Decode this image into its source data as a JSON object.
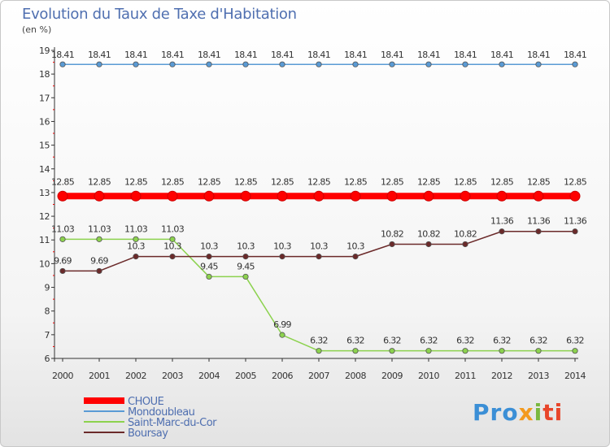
{
  "chart_data": {
    "type": "line",
    "title": "Evolution du Taux de Taxe d'Habitation",
    "ylabel": "(en %)",
    "x": [
      "2000",
      "2001",
      "2002",
      "2003",
      "2004",
      "2005",
      "2006",
      "2007",
      "2008",
      "2009",
      "2010",
      "2011",
      "2012",
      "2013",
      "2014"
    ],
    "ylim": [
      6,
      19
    ],
    "yticks": [
      6,
      7,
      8,
      9,
      10,
      11,
      12,
      13,
      14,
      15,
      16,
      17,
      18,
      19
    ],
    "series": [
      {
        "name": "CHOUE",
        "color": "#ff0000",
        "values": [
          12.85,
          12.85,
          12.85,
          12.85,
          12.85,
          12.85,
          12.85,
          12.85,
          12.85,
          12.85,
          12.85,
          12.85,
          12.85,
          12.85,
          12.85
        ],
        "labels": [
          "12.85",
          "12.85",
          "12.85",
          "12.85",
          "12.85",
          "12.85",
          "12.85",
          "12.85",
          "12.85",
          "12.85",
          "12.85",
          "12.85",
          "12.85",
          "12.85",
          "12.85"
        ]
      },
      {
        "name": "Mondoubleau",
        "color": "#5a9bd5",
        "values": [
          18.41,
          18.41,
          18.41,
          18.41,
          18.41,
          18.41,
          18.41,
          18.41,
          18.41,
          18.41,
          18.41,
          18.41,
          18.41,
          18.41,
          18.41
        ],
        "labels": [
          "18.41",
          "18.41",
          "18.41",
          "18.41",
          "18.41",
          "18.41",
          "18.41",
          "18.41",
          "18.41",
          "18.41",
          "18.41",
          "18.41",
          "18.41",
          "18.41",
          "18.41"
        ]
      },
      {
        "name": "Saint-Marc-du-Cor",
        "color": "#8cd24e",
        "values": [
          11.03,
          11.03,
          11.03,
          11.03,
          9.45,
          9.45,
          6.99,
          6.32,
          6.32,
          6.32,
          6.32,
          6.32,
          6.32,
          6.32,
          6.32
        ],
        "labels": [
          "11.03",
          "11.03",
          "11.03",
          "11.03",
          "9.45",
          "9.45",
          "6.99",
          "6.32",
          "6.32",
          "6.32",
          "6.32",
          "6.32",
          "6.32",
          "6.32",
          "6.32"
        ]
      },
      {
        "name": "Boursay",
        "color": "#6b2a2a",
        "values": [
          9.69,
          9.69,
          10.3,
          10.3,
          10.3,
          10.3,
          10.3,
          10.3,
          10.3,
          10.82,
          10.82,
          10.82,
          11.36,
          11.36,
          11.36
        ],
        "labels": [
          "9.69",
          "9.69",
          "10.3",
          "10.3",
          "10.3",
          "10.3",
          "10.3",
          "10.3",
          "10.3",
          "10.82",
          "10.82",
          "10.82",
          "11.36",
          "11.36",
          "11.36"
        ]
      }
    ]
  },
  "branding": {
    "logo_part1": "Pro",
    "logo_part2": "x",
    "logo_part3": "i",
    "logo_part4": "ti"
  }
}
